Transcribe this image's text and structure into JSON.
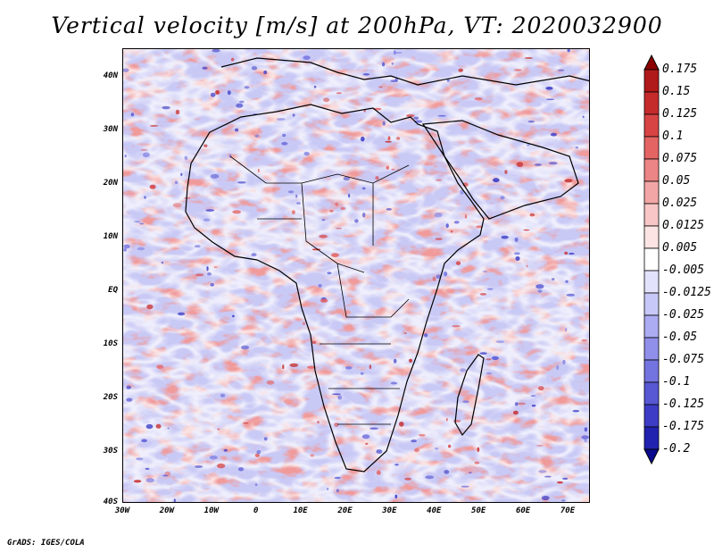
{
  "title": "Vertical velocity [m/s] at 200hPa, VT: 2020032900",
  "lat_labels": [
    "40N",
    "30N",
    "20N",
    "10N",
    "EQ",
    "10S",
    "20S",
    "30S",
    "40S"
  ],
  "lon_labels": [
    "30W",
    "20W",
    "10W",
    "0",
    "10E",
    "20E",
    "30E",
    "40E",
    "50E",
    "60E",
    "70E"
  ],
  "colorbar": {
    "labels": [
      "0.175",
      "0.15",
      "0.125",
      "0.1",
      "0.075",
      "0.05",
      "0.025",
      "0.0125",
      "0.005",
      "-0.005",
      "-0.0125",
      "-0.025",
      "-0.05",
      "-0.075",
      "-0.1",
      "-0.125",
      "-0.175",
      "-0.2"
    ],
    "colors": [
      "#8b0000",
      "#b01a1a",
      "#c62b2b",
      "#d84444",
      "#e46464",
      "#ec8585",
      "#f3a6a6",
      "#f8c6c6",
      "#fce4e4",
      "#ffffff",
      "#e2e2fc",
      "#c8c8f8",
      "#acacf2",
      "#9090ea",
      "#7474e0",
      "#5858d4",
      "#3c3cc6",
      "#2222b0",
      "#0a0a8e"
    ]
  },
  "map": {
    "lon_range": [
      -30,
      75
    ],
    "lat_range": [
      -40,
      45
    ],
    "field_name": "vertical-velocity-200hPa"
  },
  "credit": "GrADS: IGES/COLA"
}
